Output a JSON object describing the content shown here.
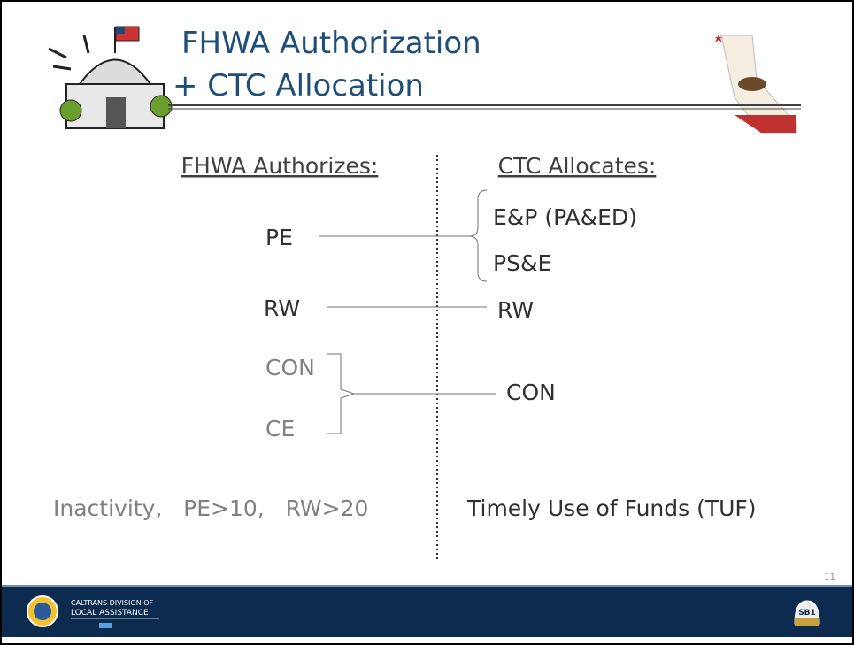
{
  "title": {
    "line1": "FHWA Authorization",
    "line2": "+ CTC Allocation"
  },
  "left": {
    "heading": "FHWA Authorizes:",
    "items": [
      "PE",
      "RW",
      "CON",
      "CE"
    ],
    "footer": "Inactivity,   PE>10,   RW>20"
  },
  "right": {
    "heading": "CTC Allocates:",
    "items": [
      "E&P (PA&ED)",
      "PS&E",
      "RW",
      "CON"
    ],
    "footer": "Timely Use of Funds (TUF)"
  },
  "slide_number": "11",
  "footer": {
    "org_line1": "CALTRANS DIVISION OF",
    "org_line2": "LOCAL ASSISTANCE",
    "badge": "SB1"
  }
}
